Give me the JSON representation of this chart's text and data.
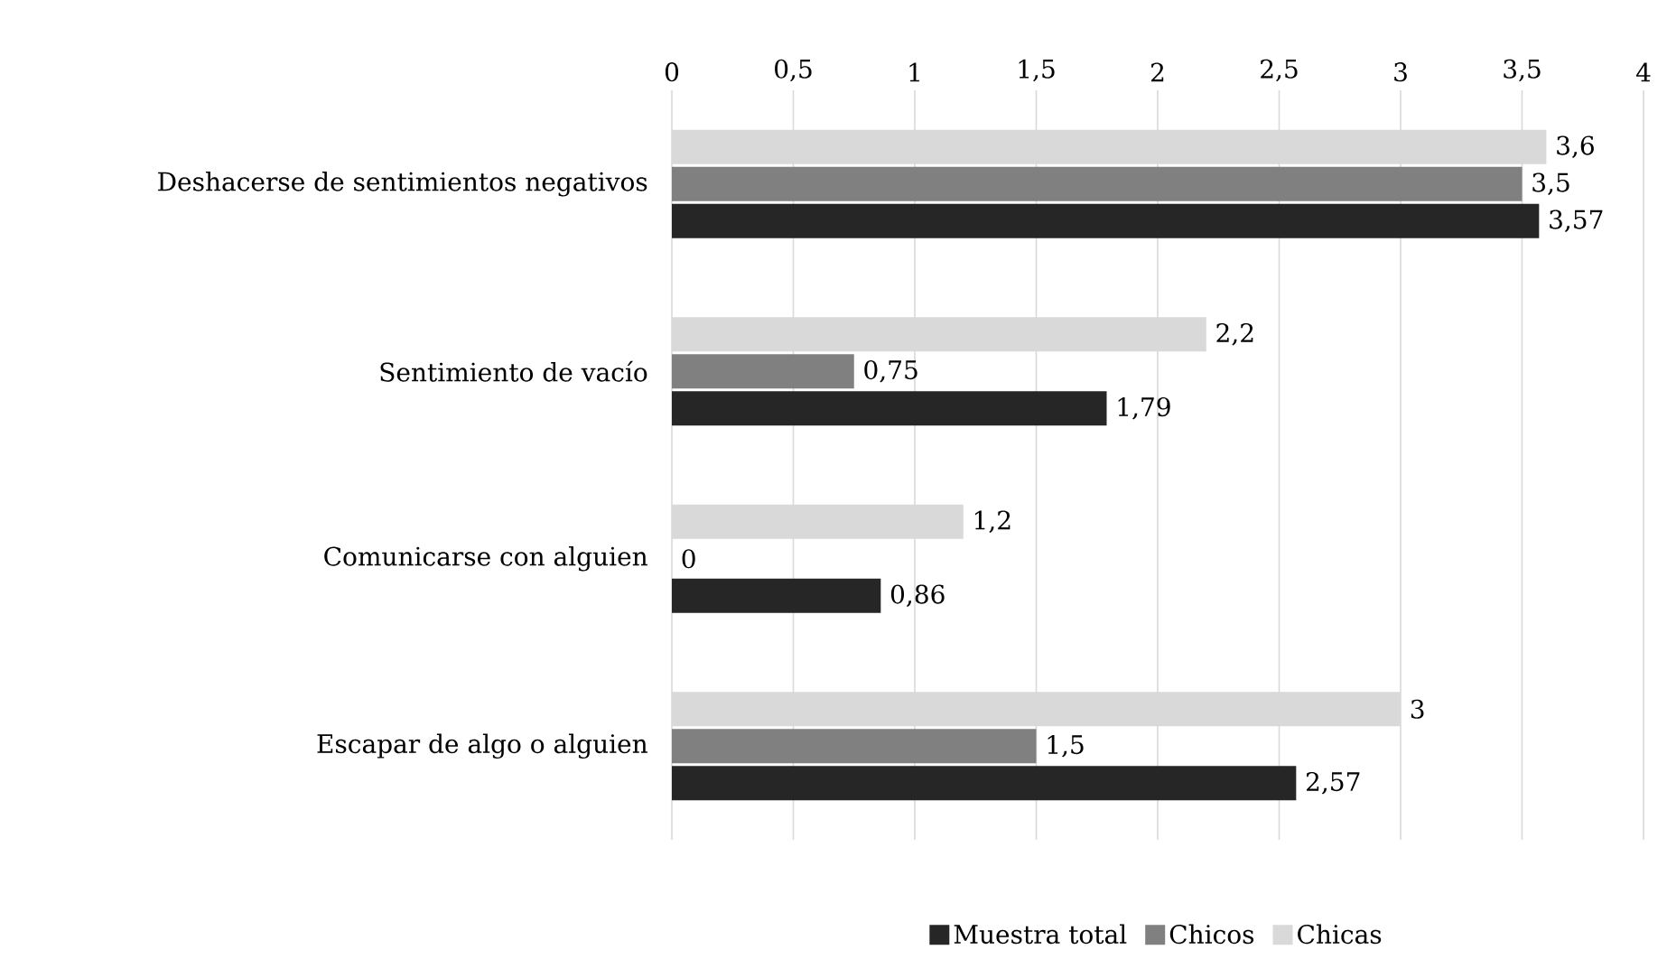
{
  "chart_data": {
    "type": "bar",
    "orientation": "horizontal",
    "categories": [
      "Deshacerse de sentimientos negativos",
      "Sentimiento de vacío",
      "Comunicarse con alguien",
      "Escapar de algo o alguien"
    ],
    "series": [
      {
        "name": "Muestra total",
        "color": "#262626",
        "values": [
          3.57,
          1.79,
          0.86,
          2.57
        ],
        "value_labels": [
          "3,57",
          "1,79",
          "0,86",
          "2,57"
        ]
      },
      {
        "name": "Chicos",
        "color": "#808080",
        "values": [
          3.5,
          0.75,
          0,
          1.5
        ],
        "value_labels": [
          "3,5",
          "0,75",
          "0",
          "1,5"
        ]
      },
      {
        "name": "Chicas",
        "color": "#d9d9d9",
        "values": [
          3.6,
          2.2,
          1.2,
          3
        ],
        "value_labels": [
          "3,6",
          "2,2",
          "1,2",
          "3"
        ]
      }
    ],
    "xlim": [
      0,
      4
    ],
    "xticks": [
      0,
      {
        "value": 0.5,
        "label": "0,5"
      },
      1,
      {
        "value": 1.5,
        "label": "1,5"
      },
      2,
      {
        "value": 2.5,
        "label": "2,5"
      },
      3,
      {
        "value": 3.5,
        "label": "3,5"
      },
      4
    ],
    "grid": "x",
    "legend": "bottom"
  }
}
